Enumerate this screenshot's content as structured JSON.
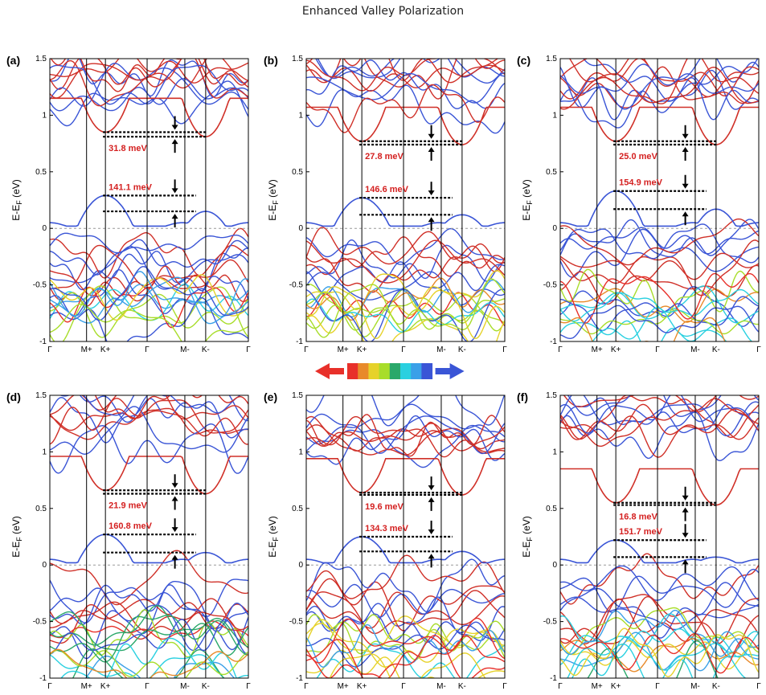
{
  "title": "Enhanced Valley Polarization",
  "colors": {
    "spin_up": "#d03028",
    "spin_down": "#3a55d6",
    "gradient": [
      "#e8302a",
      "#e88a2a",
      "#e6d22a",
      "#a8dd2a",
      "#2aa86a",
      "#2ad0e0",
      "#3aa0e8",
      "#3a55d6"
    ],
    "gap_label": "#d42020"
  },
  "legend": {
    "left_arrow": "red-arrow-left-icon",
    "right_arrow": "blue-arrow-right-icon"
  },
  "chart_data": [
    {
      "panel": "(a)",
      "type": "line",
      "xticks": [
        "Γ",
        "M+",
        "K+",
        "Γ",
        "M-",
        "K-",
        "Γ"
      ],
      "ylabel": "E-E",
      "ylabel_sub": "F",
      "ylabel_unit": " (eV)",
      "ylim": [
        -1,
        1.5
      ],
      "yticks": [
        "-1",
        "-0.5",
        "0",
        "0.5",
        "1",
        "1.5"
      ],
      "fermi_level": 0,
      "gaps": [
        {
          "label": "31.8 meV",
          "lower": 0.81,
          "upper": 0.85
        },
        {
          "label": "141.1 meV",
          "lower": 0.15,
          "upper": 0.29
        }
      ]
    },
    {
      "panel": "(b)",
      "type": "line",
      "xticks": [
        "Γ",
        "M+",
        "K+",
        "Γ",
        "M-",
        "K-",
        "Γ"
      ],
      "ylabel": "E-E",
      "ylabel_sub": "F",
      "ylabel_unit": " (eV)",
      "ylim": [
        -1,
        1.5
      ],
      "yticks": [
        "-1",
        "-0.5",
        "0",
        "0.5",
        "1",
        "1.5"
      ],
      "fermi_level": 0,
      "gaps": [
        {
          "label": "27.8 meV",
          "lower": 0.74,
          "upper": 0.77
        },
        {
          "label": "146.6 meV",
          "lower": 0.12,
          "upper": 0.27
        }
      ]
    },
    {
      "panel": "(c)",
      "type": "line",
      "xticks": [
        "Γ",
        "M+",
        "K+",
        "Γ",
        "M-",
        "K-",
        "Γ"
      ],
      "ylabel": "E-E",
      "ylabel_sub": "F",
      "ylabel_unit": " (eV)",
      "ylim": [
        -1,
        1.5
      ],
      "yticks": [
        "-1",
        "-0.5",
        "0",
        "0.5",
        "1",
        "1.5"
      ],
      "fermi_level": 0,
      "gaps": [
        {
          "label": "25.0 meV",
          "lower": 0.74,
          "upper": 0.77
        },
        {
          "label": "154.9 meV",
          "lower": 0.17,
          "upper": 0.33
        }
      ]
    },
    {
      "panel": "(d)",
      "type": "line",
      "xticks": [
        "Γ",
        "M+",
        "K+",
        "Γ",
        "M-",
        "K-",
        "Γ"
      ],
      "ylabel": "E-E",
      "ylabel_sub": "F",
      "ylabel_unit": " (eV)",
      "ylim": [
        -1,
        1.5
      ],
      "yticks": [
        "-1",
        "-0.5",
        "0",
        "0.5",
        "1",
        "1.5"
      ],
      "fermi_level": 0,
      "gaps": [
        {
          "label": "21.9 meV",
          "lower": 0.63,
          "upper": 0.66
        },
        {
          "label": "160.8 meV",
          "lower": 0.11,
          "upper": 0.27
        }
      ]
    },
    {
      "panel": "(e)",
      "type": "line",
      "xticks": [
        "Γ",
        "M+",
        "K+",
        "Γ",
        "M-",
        "K-",
        "Γ"
      ],
      "ylabel": "E-E",
      "ylabel_sub": "F",
      "ylabel_unit": " (eV)",
      "ylim": [
        -1,
        1.5
      ],
      "yticks": [
        "-1",
        "-0.5",
        "0",
        "0.5",
        "1",
        "1.5"
      ],
      "fermi_level": 0,
      "gaps": [
        {
          "label": "19.6 meV",
          "lower": 0.62,
          "upper": 0.64
        },
        {
          "label": "134.3 meV",
          "lower": 0.12,
          "upper": 0.25
        }
      ]
    },
    {
      "panel": "(f)",
      "type": "line",
      "xticks": [
        "Γ",
        "M+",
        "K+",
        "Γ",
        "M-",
        "K-",
        "Γ"
      ],
      "ylabel": "E-E",
      "ylabel_sub": "F",
      "ylabel_unit": " (eV)",
      "ylim": [
        -1,
        1.5
      ],
      "yticks": [
        "-1",
        "-0.5",
        "0",
        "0.5",
        "1",
        "1.5"
      ],
      "fermi_level": 0,
      "gaps": [
        {
          "label": "16.8 meV",
          "lower": 0.53,
          "upper": 0.55
        },
        {
          "label": "151.7 meV",
          "lower": 0.07,
          "upper": 0.22
        }
      ]
    }
  ]
}
